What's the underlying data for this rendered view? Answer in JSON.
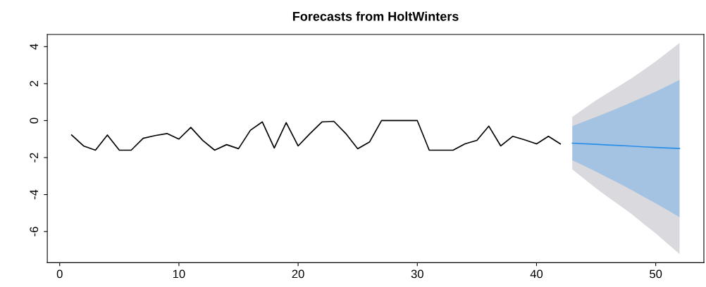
{
  "chart_data": {
    "type": "line",
    "title": "Forecasts from HoltWinters",
    "xlim": [
      -1.04,
      54.04
    ],
    "ylim": [
      -7.68,
      4.66
    ],
    "xticks": [
      0,
      10,
      20,
      30,
      40,
      50
    ],
    "yticks": [
      -6,
      -4,
      -2,
      0,
      2,
      4
    ],
    "grid": false,
    "legend": false,
    "marker": "none",
    "line_style": "solid",
    "series": [
      {
        "color": "#000000",
        "x": [
          1,
          2,
          3,
          4,
          5,
          6,
          7,
          8,
          9,
          10,
          11,
          12,
          13,
          14,
          15,
          16,
          17,
          18,
          19,
          20,
          21,
          22,
          23,
          24,
          25,
          26,
          27,
          28,
          29,
          30,
          31,
          32,
          33,
          34,
          35,
          36,
          37,
          38,
          39,
          40,
          41,
          42
        ],
        "values": [
          -0.78,
          -1.37,
          -1.6,
          -0.78,
          -1.6,
          -1.6,
          -0.96,
          -0.81,
          -0.7,
          -1.0,
          -0.37,
          -1.07,
          -1.6,
          -1.3,
          -1.52,
          -0.52,
          -0.07,
          -1.48,
          -0.11,
          -1.37,
          -0.7,
          -0.07,
          -0.04,
          -0.7,
          -1.52,
          -1.15,
          0,
          0,
          0,
          0,
          -1.6,
          -1.6,
          -1.6,
          -1.26,
          -1.07,
          -0.3,
          -1.37,
          -0.85,
          -1.04,
          -1.26,
          -0.85,
          -1.26
        ]
      },
      {
        "color": "#d9d9de",
        "x": [
          43,
          44,
          45,
          46,
          47,
          48,
          49,
          50,
          51,
          52
        ],
        "values": [
          null,
          null,
          null,
          null,
          null,
          null,
          null,
          null,
          null,
          null
        ],
        "lower": [
          -2.64,
          -3.15,
          -3.66,
          -4.14,
          -4.6,
          -5.06,
          -5.59,
          -6.1,
          -6.66,
          -7.22
        ],
        "upper": [
          0.2,
          0.65,
          1.1,
          1.5,
          1.9,
          2.3,
          2.75,
          3.2,
          3.7,
          4.2
        ]
      },
      {
        "color": "#2b8fe8",
        "x": [
          43,
          44,
          45,
          46,
          47,
          48,
          49,
          50,
          51,
          52
        ],
        "values": [
          -1.22,
          -1.25,
          -1.28,
          -1.32,
          -1.35,
          -1.38,
          -1.42,
          -1.45,
          -1.48,
          -1.51
        ],
        "lower": [
          -2.14,
          -2.45,
          -2.76,
          -3.09,
          -3.42,
          -3.76,
          -4.12,
          -4.47,
          -4.84,
          -5.22
        ],
        "upper": [
          -0.3,
          -0.05,
          0.2,
          0.45,
          0.72,
          1.0,
          1.28,
          1.57,
          1.88,
          2.2
        ]
      }
    ]
  }
}
